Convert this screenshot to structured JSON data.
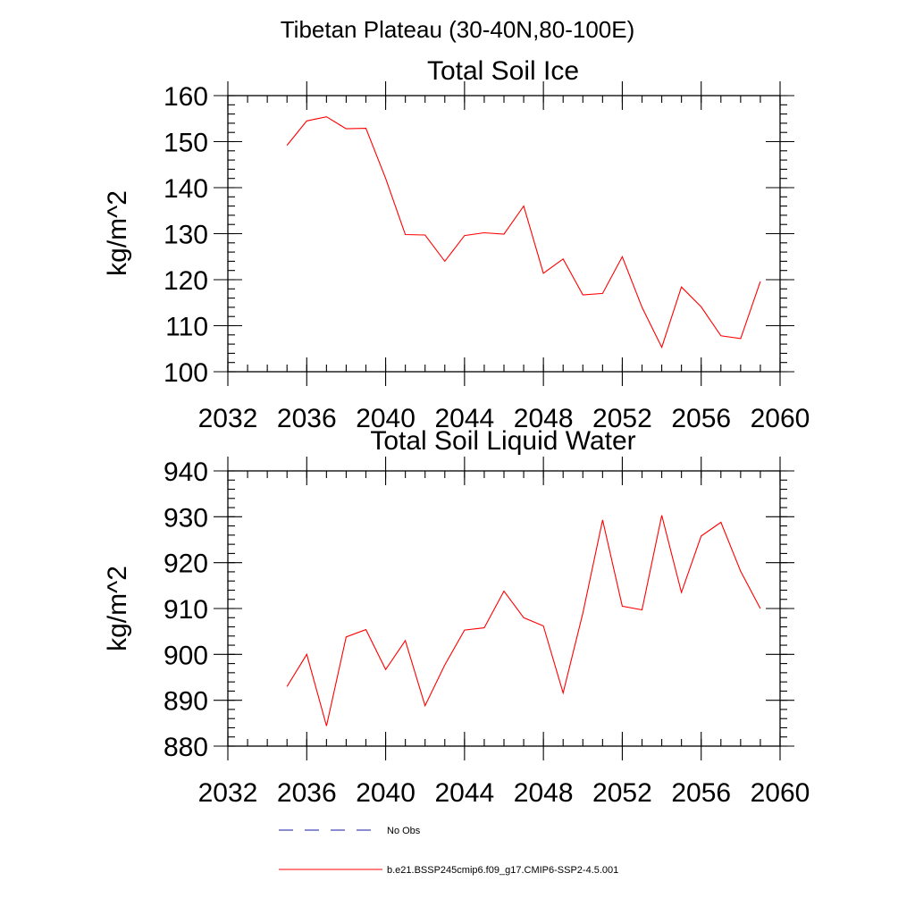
{
  "figure_title": "Tibetan Plateau (30-40N,80-100E)",
  "colors": {
    "series": "#ff0000",
    "obs": "#1a1aa0",
    "axis": "#000000"
  },
  "legend": {
    "placement": "bottom",
    "entries": [
      {
        "label": "No Obs",
        "style": "dashed",
        "color": "#1a1aa0"
      },
      {
        "label": "b.e21.BSSP245cmip6.f09_g17.CMIP6-SSP2-4.5.001",
        "style": "solid",
        "color": "#ff0000"
      }
    ]
  },
  "chart_data": [
    {
      "type": "line",
      "title": "Total Soil Ice",
      "xlabel": "",
      "ylabel": "kg/m^2",
      "xlim": [
        2032,
        2060
      ],
      "ylim": [
        100,
        160
      ],
      "xticks": [
        2032,
        2036,
        2040,
        2044,
        2048,
        2052,
        2056,
        2060
      ],
      "yticks": [
        100,
        110,
        120,
        130,
        140,
        150,
        160
      ],
      "x_minor_step": 1,
      "y_minor_step": 2,
      "grid": false,
      "x": [
        2035,
        2036,
        2037,
        2038,
        2039,
        2040,
        2041,
        2042,
        2043,
        2044,
        2045,
        2046,
        2047,
        2048,
        2049,
        2050,
        2051,
        2052,
        2053,
        2054,
        2055,
        2056,
        2057,
        2058,
        2059
      ],
      "series": [
        {
          "name": "b.e21.BSSP245cmip6.f09_g17.CMIP6-SSP2-4.5.001",
          "color": "#ff0000",
          "values": [
            149.2,
            154.5,
            155.4,
            152.8,
            152.9,
            142.0,
            129.8,
            129.7,
            124.0,
            129.6,
            130.2,
            129.9,
            136.0,
            121.4,
            124.5,
            116.7,
            117.0,
            125.0,
            114.0,
            105.3,
            118.4,
            114.1,
            107.8,
            107.2,
            119.6
          ]
        }
      ]
    },
    {
      "type": "line",
      "title": "Total Soil Liquid Water",
      "xlabel": "",
      "ylabel": "kg/m^2",
      "xlim": [
        2032,
        2060
      ],
      "ylim": [
        880,
        940
      ],
      "xticks": [
        2032,
        2036,
        2040,
        2044,
        2048,
        2052,
        2056,
        2060
      ],
      "yticks": [
        880,
        890,
        900,
        910,
        920,
        930,
        940
      ],
      "x_minor_step": 1,
      "y_minor_step": 2,
      "grid": false,
      "x": [
        2035,
        2036,
        2037,
        2038,
        2039,
        2040,
        2041,
        2042,
        2043,
        2044,
        2045,
        2046,
        2047,
        2048,
        2049,
        2050,
        2051,
        2052,
        2053,
        2054,
        2055,
        2056,
        2057,
        2058,
        2059
      ],
      "series": [
        {
          "name": "b.e21.BSSP245cmip6.f09_g17.CMIP6-SSP2-4.5.001",
          "color": "#ff0000",
          "values": [
            893.0,
            900.0,
            884.4,
            903.8,
            905.4,
            896.7,
            903.0,
            888.8,
            897.7,
            905.3,
            905.8,
            913.8,
            908.0,
            906.2,
            891.6,
            909.0,
            929.3,
            910.5,
            909.7,
            930.3,
            913.5,
            925.8,
            928.8,
            918.1,
            910.0
          ]
        }
      ]
    }
  ]
}
